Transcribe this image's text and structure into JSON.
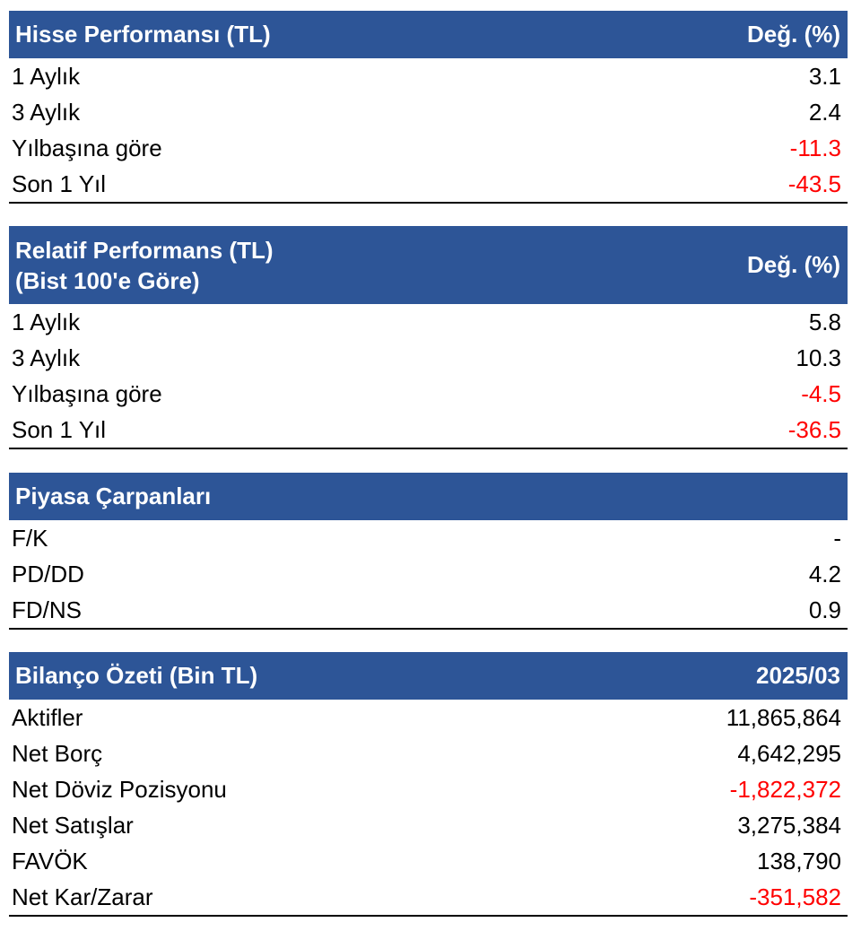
{
  "colors": {
    "header_bg": "#2d5597",
    "header_text": "#ffffff",
    "negative_value": "#ff0000",
    "positive_value": "#000000"
  },
  "stock_performance": {
    "title": "Hisse Performansı (TL)",
    "value_header": "Değ. (%)",
    "rows": [
      {
        "label": "1 Aylık",
        "value": "3.1",
        "negative": false
      },
      {
        "label": "3 Aylık",
        "value": "2.4",
        "negative": false
      },
      {
        "label": "Yılbaşına göre",
        "value": "-11.3",
        "negative": true
      },
      {
        "label": "Son 1 Yıl",
        "value": "-43.5",
        "negative": true
      }
    ]
  },
  "relative_performance": {
    "title_line1": "Relatif Performans (TL)",
    "title_line2": "(Bist 100'e Göre)",
    "value_header": "Değ. (%)",
    "rows": [
      {
        "label": "1 Aylık",
        "value": "5.8",
        "negative": false
      },
      {
        "label": "3 Aylık",
        "value": "10.3",
        "negative": false
      },
      {
        "label": "Yılbaşına göre",
        "value": "-4.5",
        "negative": true
      },
      {
        "label": "Son 1 Yıl",
        "value": "-36.5",
        "negative": true
      }
    ]
  },
  "market_multiples": {
    "title": "Piyasa Çarpanları",
    "rows": [
      {
        "label": "F/K",
        "value": "-",
        "negative": false
      },
      {
        "label": "PD/DD",
        "value": "4.2",
        "negative": false
      },
      {
        "label": "FD/NS",
        "value": "0.9",
        "negative": false
      }
    ]
  },
  "balance_summary": {
    "title": "Bilanço Özeti (Bin TL)",
    "value_header": "2025/03",
    "rows": [
      {
        "label": "Aktifler",
        "value": "11,865,864",
        "negative": false
      },
      {
        "label": "Net Borç",
        "value": "4,642,295",
        "negative": false
      },
      {
        "label": "Net Döviz Pozisyonu",
        "value": "-1,822,372",
        "negative": true
      },
      {
        "label": "Net Satışlar",
        "value": "3,275,384",
        "negative": false
      },
      {
        "label": "FAVÖK",
        "value": "138,790",
        "negative": false
      },
      {
        "label": "Net Kar/Zarar",
        "value": "-351,582",
        "negative": true
      }
    ]
  }
}
